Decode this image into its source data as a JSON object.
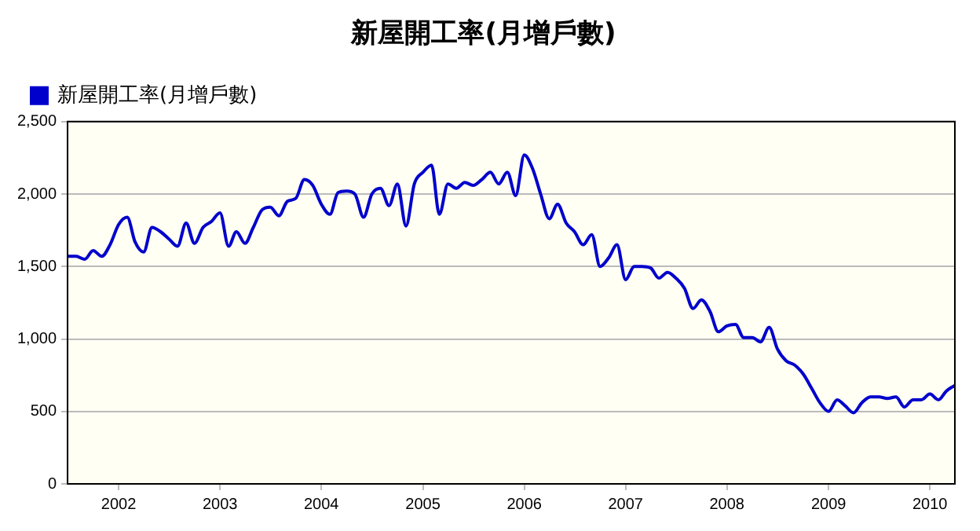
{
  "chart_data": {
    "type": "line",
    "title": "新屋開工率(月增戶數)",
    "x": [
      "2001-07",
      "2001-08",
      "2001-09",
      "2001-10",
      "2001-11",
      "2001-12",
      "2002-01",
      "2002-02",
      "2002-03",
      "2002-04",
      "2002-05",
      "2002-06",
      "2002-07",
      "2002-08",
      "2002-09",
      "2002-10",
      "2002-11",
      "2002-12",
      "2003-01",
      "2003-02",
      "2003-03",
      "2003-04",
      "2003-05",
      "2003-06",
      "2003-07",
      "2003-08",
      "2003-09",
      "2003-10",
      "2003-11",
      "2003-12",
      "2004-01",
      "2004-02",
      "2004-03",
      "2004-04",
      "2004-05",
      "2004-06",
      "2004-07",
      "2004-08",
      "2004-09",
      "2004-10",
      "2004-11",
      "2004-12",
      "2005-01",
      "2005-02",
      "2005-03",
      "2005-04",
      "2005-05",
      "2005-06",
      "2005-07",
      "2005-08",
      "2005-09",
      "2005-10",
      "2005-11",
      "2005-12",
      "2006-01",
      "2006-02",
      "2006-03",
      "2006-04",
      "2006-05",
      "2006-06",
      "2006-07",
      "2006-08",
      "2006-09",
      "2006-10",
      "2006-11",
      "2006-12",
      "2007-01",
      "2007-02",
      "2007-03",
      "2007-04",
      "2007-05",
      "2007-06",
      "2007-07",
      "2007-08",
      "2007-09",
      "2007-10",
      "2007-11",
      "2007-12",
      "2008-01",
      "2008-02",
      "2008-03",
      "2008-04",
      "2008-05",
      "2008-06",
      "2008-07",
      "2008-08",
      "2008-09",
      "2008-10",
      "2008-11",
      "2008-12",
      "2009-01",
      "2009-02",
      "2009-03",
      "2009-04",
      "2009-05",
      "2009-06",
      "2009-07",
      "2009-08",
      "2009-09",
      "2009-10",
      "2009-11",
      "2009-12",
      "2010-01",
      "2010-02",
      "2010-03",
      "2010-04"
    ],
    "series": [
      {
        "name": "新屋開工率(月增戶數)",
        "color": "#0000cc",
        "values": [
          1570,
          1570,
          1550,
          1610,
          1570,
          1650,
          1790,
          1840,
          1670,
          1600,
          1770,
          1740,
          1690,
          1640,
          1800,
          1660,
          1770,
          1810,
          1870,
          1640,
          1740,
          1660,
          1770,
          1890,
          1910,
          1850,
          1950,
          1970,
          2100,
          2060,
          1930,
          1860,
          2010,
          2020,
          2000,
          1840,
          2000,
          2040,
          1920,
          2070,
          1780,
          2070,
          2150,
          2200,
          1860,
          2070,
          2040,
          2080,
          2060,
          2100,
          2150,
          2070,
          2150,
          1990,
          2270,
          2170,
          2000,
          1830,
          1930,
          1800,
          1740,
          1650,
          1720,
          1500,
          1560,
          1650,
          1410,
          1500,
          1500,
          1490,
          1420,
          1460,
          1420,
          1350,
          1210,
          1270,
          1190,
          1050,
          1090,
          1100,
          1010,
          1010,
          980,
          1080,
          930,
          850,
          820,
          760,
          660,
          560,
          500,
          580,
          540,
          490,
          560,
          600,
          600,
          590,
          600,
          530,
          580,
          580,
          620,
          580,
          640,
          680
        ]
      }
    ],
    "xlim": [
      "2001-07",
      "2010-04"
    ],
    "xticks": [
      "2002",
      "2003",
      "2004",
      "2005",
      "2006",
      "2007",
      "2008",
      "2009",
      "2010"
    ],
    "ylim": [
      0,
      2500
    ],
    "yticks": [
      {
        "value": 0,
        "label": "0"
      },
      {
        "value": 500,
        "label": "500"
      },
      {
        "value": 1000,
        "label": "1,000"
      },
      {
        "value": 1500,
        "label": "1,500"
      },
      {
        "value": 2000,
        "label": "2,000"
      },
      {
        "value": 2500,
        "label": "2,500"
      }
    ],
    "grid": "y",
    "legend": "top left",
    "marker": "none",
    "line_style": "solid"
  }
}
